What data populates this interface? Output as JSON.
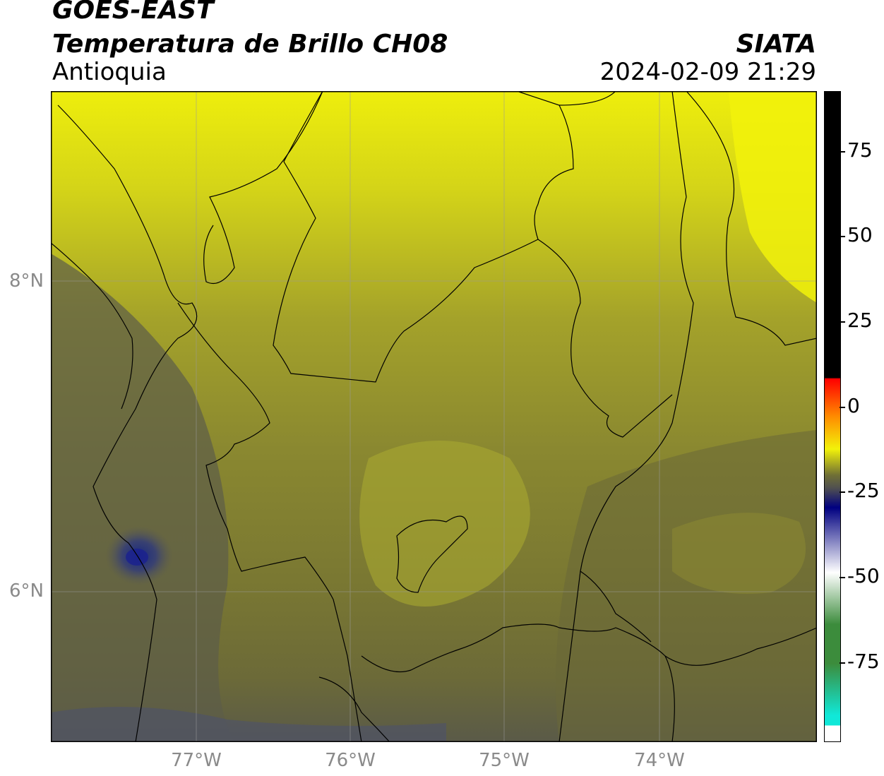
{
  "header": {
    "satellite": "GOES-EAST",
    "product": "Temperatura de Brillo CH08",
    "region": "Antioquia",
    "agency": "SIATA",
    "datetime": "2024-02-09 21:29"
  },
  "map": {
    "lat_labels": [
      "8°N",
      "6°N"
    ],
    "lon_labels": [
      "77°W",
      "76°W",
      "75°W",
      "74°W"
    ]
  },
  "colorbar": {
    "ticks": [
      "75",
      "50",
      "25",
      "0",
      "-25",
      "-50",
      "-75"
    ],
    "colors": {
      "black": "#000000",
      "red": "#ff0000",
      "orange": "#ff8c00",
      "yellow": "#f2f20a",
      "olive": "#707035",
      "dark_gray": "#505050",
      "navy": "#000080",
      "white": "#ffffff",
      "green": "#3c8c3c",
      "cyan": "#10e8d8"
    }
  }
}
